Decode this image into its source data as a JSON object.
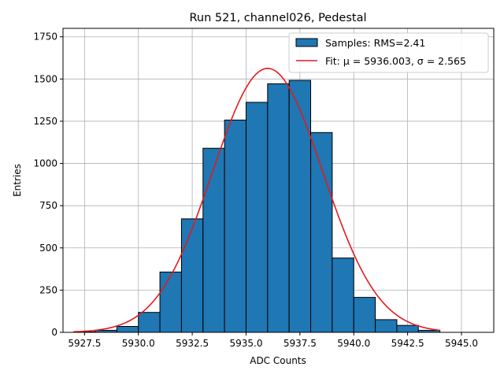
{
  "chart_data": {
    "type": "bar",
    "title": "Run 521, channel026, Pedestal",
    "xlabel": "ADC Counts",
    "ylabel": "Entries",
    "xlim": [
      5926.5,
      5946.5
    ],
    "ylim": [
      0,
      1800
    ],
    "xticks": [
      5927.5,
      5930.0,
      5932.5,
      5935.0,
      5937.5,
      5940.0,
      5942.5,
      5945.0
    ],
    "xtick_labels": [
      "5927.5",
      "5930.0",
      "5932.5",
      "5935.0",
      "5937.5",
      "5940.0",
      "5942.5",
      "5945.0"
    ],
    "yticks": [
      0,
      250,
      500,
      750,
      1000,
      1250,
      1500,
      1750
    ],
    "ytick_labels": [
      "0",
      "250",
      "500",
      "750",
      "1000",
      "1250",
      "1500",
      "1750"
    ],
    "grid": true,
    "histogram": {
      "name": "Samples: RMS=2.41",
      "color": "#1f77b4",
      "edgecolor": "#000000",
      "bin_edges": [
        5927,
        5928,
        5929,
        5930,
        5931,
        5932,
        5933,
        5934,
        5935,
        5936,
        5937,
        5938,
        5939,
        5940,
        5941,
        5942,
        5943,
        5944
      ],
      "counts": [
        3,
        12,
        35,
        118,
        357,
        672,
        1090,
        1257,
        1362,
        1472,
        1492,
        1183,
        440,
        207,
        75,
        41,
        12
      ]
    },
    "fit": {
      "name": "Fit: μ = 5936.003, σ = 2.565",
      "color": "#e41a1c",
      "mu": 5936.003,
      "sigma": 2.565,
      "amplitude": 1563,
      "x_range": [
        5927,
        5944
      ]
    },
    "legend": {
      "location": "upper right",
      "entries": [
        "Samples: RMS=2.41",
        "Fit: μ = 5936.003, σ = 2.565"
      ]
    }
  }
}
